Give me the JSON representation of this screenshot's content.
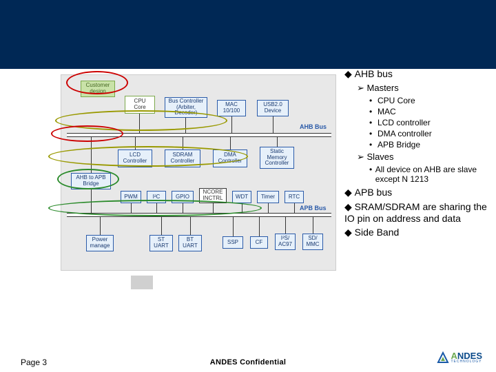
{
  "banner_bg": "#002855",
  "diagram": {
    "customer": "Customer\ndesign",
    "cpu": "CPU\nCore",
    "buscontroller": "Bus Controller\n(Arbiter,\nDecoder)",
    "mac": "MAC\n10/100",
    "usb": "USB2.0\nDevice",
    "ahb_label": "AHB Bus",
    "lcd": "LCD\nController",
    "sdram": "SDRAM\nController",
    "dma": "DMA\nController",
    "smc": "Static\nMemory\nController",
    "ahb2apb": "AHB to APB\nBridge",
    "pwm": "PWM",
    "i2c": "I²C",
    "gpio": "GPIO",
    "ncore": "NCORE\nINCTRL",
    "wdt": "WDT",
    "timer": "Timer",
    "rtc": "RTC",
    "apb_label": "APB Bus",
    "power": "Power\nmanage",
    "stuart": "ST\nUART",
    "btuart": "BT\nUART",
    "ssp": "SSP",
    "cf": "CF",
    "i2s": "I²S/\nAC97",
    "sd": "SD/\nMMC"
  },
  "bullets": {
    "ahb_bus": "AHB bus",
    "masters": "Masters",
    "m_cpu": "CPU Core",
    "m_mac": "MAC",
    "m_lcd": "LCD controller",
    "m_dma": "DMA controller",
    "m_apb": "APB Bridge",
    "slaves": "Slaves",
    "s_all": "All device on AHB are slave except N 1213",
    "apb_bus": "APB bus",
    "sram": "SRAM/SDRAM are sharing the IO pin on address and data",
    "sideband": "Side Band"
  },
  "footer": {
    "page": "Page 3",
    "confidential": "ANDES Confidential"
  },
  "logo": {
    "text1": "NDES",
    "text2": "TECHNOLOGY"
  },
  "ellipse_colors": {
    "red": "#cc0000",
    "olive": "#999900",
    "green": "#2a8a2a"
  }
}
